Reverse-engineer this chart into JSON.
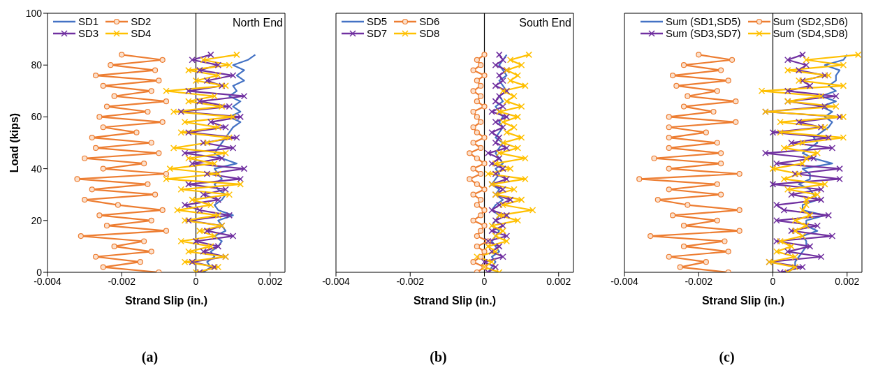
{
  "chart_data": [
    {
      "type": "line",
      "title": "(a)",
      "xlabel": "Strand Slip (in.)",
      "ylabel": "Load (kips)",
      "annotations": [
        "North End"
      ],
      "xlim": [
        -0.004,
        0.0024
      ],
      "xticks": [
        -0.004,
        -0.002,
        0,
        0.002
      ],
      "ylim": [
        0,
        100
      ],
      "yticks": [
        0,
        20,
        40,
        60,
        80,
        100
      ],
      "legend": "top left",
      "ref_lines": [
        {
          "axis": "x",
          "value": 0,
          "color": "#000000"
        }
      ],
      "series": [
        {
          "name": "SD1",
          "color": "#4472c4",
          "marker": "none",
          "x": [
            0.0002,
            0.0004,
            0.0003,
            0.0005,
            0.0004,
            0.0006,
            0.0007,
            0.0005,
            0.0008,
            0.0007,
            0.0006,
            0.001,
            0.0006,
            0.0005,
            0.0007,
            0.0008,
            0.0006,
            0.0005,
            0.0007,
            0.0006,
            0.0005,
            0.0011,
            0.0007,
            0.0005,
            0.0006,
            0.0007,
            0.0008,
            0.0009,
            0.001,
            0.0012,
            0.0009,
            0.0012,
            0.001,
            0.0012,
            0.0009,
            0.0011,
            0.001,
            0.0013,
            0.0011,
            0.0013,
            0.001,
            0.0014,
            0.0016
          ],
          "values": [
            0,
            2,
            4,
            6,
            8,
            10,
            12,
            14,
            16,
            18,
            20,
            22,
            24,
            26,
            28,
            30,
            32,
            34,
            36,
            38,
            40,
            42,
            44,
            46,
            48,
            50,
            52,
            54,
            56,
            58,
            60,
            62,
            64,
            66,
            68,
            70,
            72,
            74,
            76,
            78,
            80,
            82,
            84
          ]
        },
        {
          "name": "SD2",
          "color": "#ed7d31",
          "marker": "circle",
          "x": [
            -0.001,
            -0.0025,
            -0.0015,
            -0.0027,
            -0.0012,
            -0.0022,
            -0.0014,
            -0.0031,
            -0.0008,
            -0.0024,
            -0.0012,
            -0.0026,
            -0.0009,
            -0.0021,
            -0.003,
            -0.0011,
            -0.0028,
            -0.0013,
            -0.0032,
            -0.0008,
            -0.0025,
            -0.0014,
            -0.003,
            -0.001,
            -0.0027,
            -0.0012,
            -0.0028,
            -0.0016,
            -0.0025,
            -0.0009,
            -0.0026,
            -0.0013,
            -0.0024,
            -0.0008,
            -0.0022,
            -0.0012,
            -0.0025,
            -0.001,
            -0.0027,
            -0.0011,
            -0.0023,
            -0.0009,
            -0.002
          ],
          "values": [
            0,
            2,
            4,
            6,
            8,
            10,
            12,
            14,
            16,
            18,
            20,
            22,
            24,
            26,
            28,
            30,
            32,
            34,
            36,
            38,
            40,
            42,
            44,
            46,
            48,
            50,
            52,
            54,
            56,
            58,
            60,
            62,
            64,
            66,
            68,
            70,
            72,
            74,
            76,
            78,
            80,
            82,
            84
          ]
        },
        {
          "name": "SD3",
          "color": "#7030a0",
          "marker": "cross",
          "x": [
            0.0001,
            0.0005,
            -0.0001,
            0.0008,
            0.0002,
            0.0006,
            0.0,
            0.001,
            0.0003,
            0.0007,
            -0.0002,
            0.0009,
            0.0001,
            -0.0003,
            0.0006,
            0.0002,
            0.0008,
            -0.0002,
            0.0012,
            0.0003,
            0.0013,
            -0.0001,
            0.0007,
            -0.0003,
            0.001,
            0.0002,
            0.0011,
            -0.0002,
            0.0008,
            0.0004,
            0.0012,
            -0.0004,
            0.0009,
            0.0001,
            0.0013,
            -0.0002,
            0.0007,
            0.0003,
            0.001,
            0.0001,
            0.0006,
            -0.0001,
            0.0004
          ],
          "values": [
            0,
            2,
            4,
            6,
            8,
            10,
            12,
            14,
            16,
            18,
            20,
            22,
            24,
            26,
            28,
            30,
            32,
            34,
            36,
            38,
            40,
            42,
            44,
            46,
            48,
            50,
            52,
            54,
            56,
            58,
            60,
            62,
            64,
            66,
            68,
            70,
            72,
            74,
            76,
            78,
            80,
            82,
            84
          ]
        },
        {
          "name": "SD4",
          "color": "#ffc000",
          "marker": "cross",
          "x": [
            0.0,
            0.0006,
            -0.0003,
            0.0008,
            -0.0002,
            0.0004,
            -0.0004,
            0.0005,
            0.0001,
            0.0007,
            -0.0003,
            0.0006,
            -0.0005,
            0.0004,
            -0.0001,
            0.0009,
            -0.0004,
            0.0012,
            -0.0008,
            0.0006,
            -0.0007,
            0.0005,
            -0.0002,
            0.0008,
            -0.0006,
            0.0003,
            0.0009,
            -0.0004,
            0.0006,
            -0.0003,
            0.001,
            -0.0006,
            0.0007,
            -0.0002,
            0.0005,
            -0.0008,
            0.0008,
            0.0,
            0.0006,
            -0.0002,
            0.0009,
            0.0002,
            0.0011
          ],
          "values": [
            0,
            2,
            4,
            6,
            8,
            10,
            12,
            14,
            16,
            18,
            20,
            22,
            24,
            26,
            28,
            30,
            32,
            34,
            36,
            38,
            40,
            42,
            44,
            46,
            48,
            50,
            52,
            54,
            56,
            58,
            60,
            62,
            64,
            66,
            68,
            70,
            72,
            74,
            76,
            78,
            80,
            82,
            84
          ]
        }
      ]
    },
    {
      "type": "line",
      "title": "(b)",
      "xlabel": "Strand Slip (in.)",
      "annotations": [
        "South End"
      ],
      "xlim": [
        -0.004,
        0.0024
      ],
      "xticks": [
        -0.004,
        -0.002,
        0,
        0.002
      ],
      "ylim": [
        0,
        100
      ],
      "yticks": [
        0,
        20,
        40,
        60,
        80,
        100
      ],
      "legend": "top left",
      "tick_labels": "x",
      "ref_lines": [
        {
          "axis": "x",
          "value": 0,
          "color": "#000000"
        }
      ],
      "series": [
        {
          "name": "SD5",
          "color": "#4472c4",
          "marker": "none",
          "x": [
            0.0001,
            0.0002,
            0.0003,
            0.0002,
            0.0004,
            0.0003,
            0.0002,
            0.0003,
            0.0004,
            0.0002,
            0.0003,
            0.0004,
            0.0002,
            0.0003,
            0.0005,
            0.0003,
            0.0004,
            0.0002,
            0.0003,
            0.0004,
            0.0003,
            0.0005,
            0.0004,
            0.0003,
            0.0004,
            0.0005,
            0.0003,
            0.0004,
            0.0005,
            0.0004,
            0.0005,
            0.0004,
            0.0003,
            0.0005,
            0.0004,
            0.0006,
            0.0005,
            0.0004,
            0.0006,
            0.0005,
            0.0004,
            0.0005,
            0.0006
          ],
          "values": [
            0,
            2,
            4,
            6,
            8,
            10,
            12,
            14,
            16,
            18,
            20,
            22,
            24,
            26,
            28,
            30,
            32,
            34,
            36,
            38,
            40,
            42,
            44,
            46,
            48,
            50,
            52,
            54,
            56,
            58,
            60,
            62,
            64,
            66,
            68,
            70,
            72,
            74,
            76,
            78,
            80,
            82,
            84
          ]
        },
        {
          "name": "SD6",
          "color": "#ed7d31",
          "marker": "circle",
          "x": [
            -0.0002,
            0.0,
            -0.0003,
            -0.0001,
            0.0,
            -0.0002,
            0.0001,
            -0.0002,
            -0.0001,
            0.0,
            -0.0003,
            -0.0001,
            0.0,
            -0.0002,
            -0.0001,
            -0.0003,
            0.0,
            -0.0002,
            -0.0004,
            -0.0001,
            -0.0003,
            0.0,
            -0.0002,
            -0.0004,
            -0.0001,
            -0.0003,
            0.0,
            -0.0002,
            -0.0003,
            -0.0001,
            -0.0002,
            -0.0003,
            0.0,
            -0.0002,
            -0.0001,
            -0.0003,
            -0.0001,
            -0.0002,
            0.0,
            -0.0003,
            -0.0001,
            -0.0002,
            0.0
          ],
          "values": [
            0,
            2,
            4,
            6,
            8,
            10,
            12,
            14,
            16,
            18,
            20,
            22,
            24,
            26,
            28,
            30,
            32,
            34,
            36,
            38,
            40,
            42,
            44,
            46,
            48,
            50,
            52,
            54,
            56,
            58,
            60,
            62,
            64,
            66,
            68,
            70,
            72,
            74,
            76,
            78,
            80,
            82,
            84
          ]
        },
        {
          "name": "SD7",
          "color": "#7030a0",
          "marker": "cross",
          "x": [
            0.0001,
            0.0003,
            0.0,
            0.0005,
            0.0002,
            0.0004,
            0.0001,
            0.0006,
            0.0002,
            0.0005,
            0.0003,
            0.0006,
            0.0002,
            0.0004,
            0.0007,
            0.0003,
            0.0005,
            0.0002,
            0.0006,
            0.0003,
            0.0005,
            0.0002,
            0.0004,
            0.0001,
            0.0006,
            0.0003,
            0.0004,
            0.0002,
            0.0005,
            0.0003,
            0.0006,
            0.0002,
            0.0005,
            0.0003,
            0.0004,
            0.0006,
            0.0003,
            0.0005,
            0.0004,
            0.0006,
            0.0003,
            0.0005,
            0.0004
          ],
          "values": [
            0,
            2,
            4,
            6,
            8,
            10,
            12,
            14,
            16,
            18,
            20,
            22,
            24,
            26,
            28,
            30,
            32,
            34,
            36,
            38,
            40,
            42,
            44,
            46,
            48,
            50,
            52,
            54,
            56,
            58,
            60,
            62,
            64,
            66,
            68,
            70,
            72,
            74,
            76,
            78,
            80,
            82,
            84
          ]
        },
        {
          "name": "SD8",
          "color": "#ffc000",
          "marker": "cross",
          "x": [
            0.0004,
            0.0,
            0.0002,
            -0.0002,
            0.0003,
            0.0001,
            0.0006,
            0.0003,
            0.0005,
            0.0002,
            0.0009,
            0.0004,
            0.0013,
            0.0005,
            0.001,
            0.0003,
            0.0008,
            0.0002,
            0.0011,
            0.0001,
            0.0007,
            0.0003,
            0.0011,
            0.0004,
            0.0009,
            0.0005,
            0.001,
            0.0006,
            0.0008,
            0.0005,
            0.0009,
            0.0004,
            0.001,
            0.0006,
            0.0008,
            0.0005,
            0.0011,
            0.0007,
            0.0009,
            0.0006,
            0.001,
            0.0007,
            0.0012
          ],
          "values": [
            0,
            2,
            4,
            6,
            8,
            10,
            12,
            14,
            16,
            18,
            20,
            22,
            24,
            26,
            28,
            30,
            32,
            34,
            36,
            38,
            40,
            42,
            44,
            46,
            48,
            50,
            52,
            54,
            56,
            58,
            60,
            62,
            64,
            66,
            68,
            70,
            72,
            74,
            76,
            78,
            80,
            82,
            84
          ]
        }
      ]
    },
    {
      "type": "line",
      "title": "(c)",
      "xlabel": "Strand Slip (in.)",
      "xlim": [
        -0.004,
        0.0024
      ],
      "xticks": [
        -0.004,
        -0.002,
        0,
        0.002
      ],
      "ylim": [
        0,
        100
      ],
      "yticks": [
        0,
        20,
        40,
        60,
        80,
        100
      ],
      "legend": "top",
      "tick_labels": "x",
      "ref_lines": [
        {
          "axis": "x",
          "value": 0,
          "color": "#000000"
        }
      ],
      "series": [
        {
          "name": "Sum (SD1,SD5)",
          "color": "#4472c4",
          "marker": "none",
          "x": [
            0.0003,
            0.0006,
            0.0006,
            0.0007,
            0.0008,
            0.0009,
            0.0009,
            0.0008,
            0.0012,
            0.0009,
            0.0009,
            0.0014,
            0.0008,
            0.0008,
            0.0012,
            0.0011,
            0.001,
            0.0007,
            0.001,
            0.001,
            0.0008,
            0.0016,
            0.0011,
            0.0008,
            0.001,
            0.0012,
            0.0011,
            0.0013,
            0.0015,
            0.0016,
            0.0014,
            0.0016,
            0.0013,
            0.0017,
            0.0013,
            0.0017,
            0.0015,
            0.0017,
            0.0017,
            0.0018,
            0.0014,
            0.0019,
            0.002
          ],
          "values": [
            0,
            2,
            4,
            6,
            8,
            10,
            12,
            14,
            16,
            18,
            20,
            22,
            24,
            26,
            28,
            30,
            32,
            34,
            36,
            38,
            40,
            42,
            44,
            46,
            48,
            50,
            52,
            54,
            56,
            58,
            60,
            62,
            64,
            66,
            68,
            70,
            72,
            74,
            76,
            78,
            80,
            82,
            84
          ]
        },
        {
          "name": "Sum (SD2,SD6)",
          "color": "#ed7d31",
          "marker": "circle",
          "x": [
            -0.0012,
            -0.0025,
            -0.0018,
            -0.0028,
            -0.0012,
            -0.0024,
            -0.0013,
            -0.0033,
            -0.0009,
            -0.0024,
            -0.0015,
            -0.0027,
            -0.0009,
            -0.0023,
            -0.0031,
            -0.0014,
            -0.0028,
            -0.0015,
            -0.0036,
            -0.0009,
            -0.0028,
            -0.0014,
            -0.0032,
            -0.0014,
            -0.0028,
            -0.0015,
            -0.0028,
            -0.0018,
            -0.0028,
            -0.001,
            -0.0028,
            -0.0016,
            -0.0024,
            -0.001,
            -0.0023,
            -0.0015,
            -0.0026,
            -0.0012,
            -0.0027,
            -0.0014,
            -0.0024,
            -0.0011,
            -0.002
          ],
          "values": [
            0,
            2,
            4,
            6,
            8,
            10,
            12,
            14,
            16,
            18,
            20,
            22,
            24,
            26,
            28,
            30,
            32,
            34,
            36,
            38,
            40,
            42,
            44,
            46,
            48,
            50,
            52,
            54,
            56,
            58,
            60,
            62,
            64,
            66,
            68,
            70,
            72,
            74,
            76,
            78,
            80,
            82,
            84
          ]
        },
        {
          "name": "Sum (SD3,SD7)",
          "color": "#7030a0",
          "marker": "cross",
          "x": [
            0.0002,
            0.0008,
            -0.0001,
            0.0013,
            0.0004,
            0.001,
            0.0001,
            0.0016,
            0.0005,
            0.0012,
            0.0001,
            0.0015,
            0.0003,
            0.0001,
            0.0013,
            0.0005,
            0.0013,
            0.0,
            0.0018,
            0.0006,
            0.0018,
            0.0001,
            0.0011,
            -0.0002,
            0.0016,
            0.0005,
            0.0015,
            0.0,
            0.0013,
            0.0007,
            0.0018,
            -0.0002,
            0.0014,
            0.0004,
            0.0017,
            0.0004,
            0.001,
            0.0008,
            0.0014,
            0.0007,
            0.0009,
            0.0004,
            0.0008
          ],
          "values": [
            0,
            2,
            4,
            6,
            8,
            10,
            12,
            14,
            16,
            18,
            20,
            22,
            24,
            26,
            28,
            30,
            32,
            34,
            36,
            38,
            40,
            42,
            44,
            46,
            48,
            50,
            52,
            54,
            56,
            58,
            60,
            62,
            64,
            66,
            68,
            70,
            72,
            74,
            76,
            78,
            80,
            82,
            84
          ]
        },
        {
          "name": "Sum (SD4,SD8)",
          "color": "#ffc000",
          "marker": "cross",
          "x": [
            0.0004,
            0.0006,
            -0.0001,
            0.0006,
            0.0001,
            0.0005,
            0.0002,
            0.0008,
            0.0006,
            0.0009,
            0.0006,
            0.001,
            0.0008,
            0.0009,
            0.0009,
            0.0012,
            0.0004,
            0.0014,
            0.0003,
            0.0007,
            0.0,
            0.0008,
            0.0009,
            0.0012,
            0.0003,
            0.0008,
            0.0019,
            0.0002,
            0.0014,
            0.0002,
            0.0019,
            -0.0002,
            0.0017,
            0.0004,
            0.0013,
            -0.0003,
            0.0019,
            0.0007,
            0.0015,
            0.0004,
            0.0019,
            0.0009,
            0.0023
          ],
          "values": [
            0,
            2,
            4,
            6,
            8,
            10,
            12,
            14,
            16,
            18,
            20,
            22,
            24,
            26,
            28,
            30,
            32,
            34,
            36,
            38,
            40,
            42,
            44,
            46,
            48,
            50,
            52,
            54,
            56,
            58,
            60,
            62,
            64,
            66,
            68,
            70,
            72,
            74,
            76,
            78,
            80,
            82,
            84
          ]
        }
      ]
    }
  ]
}
